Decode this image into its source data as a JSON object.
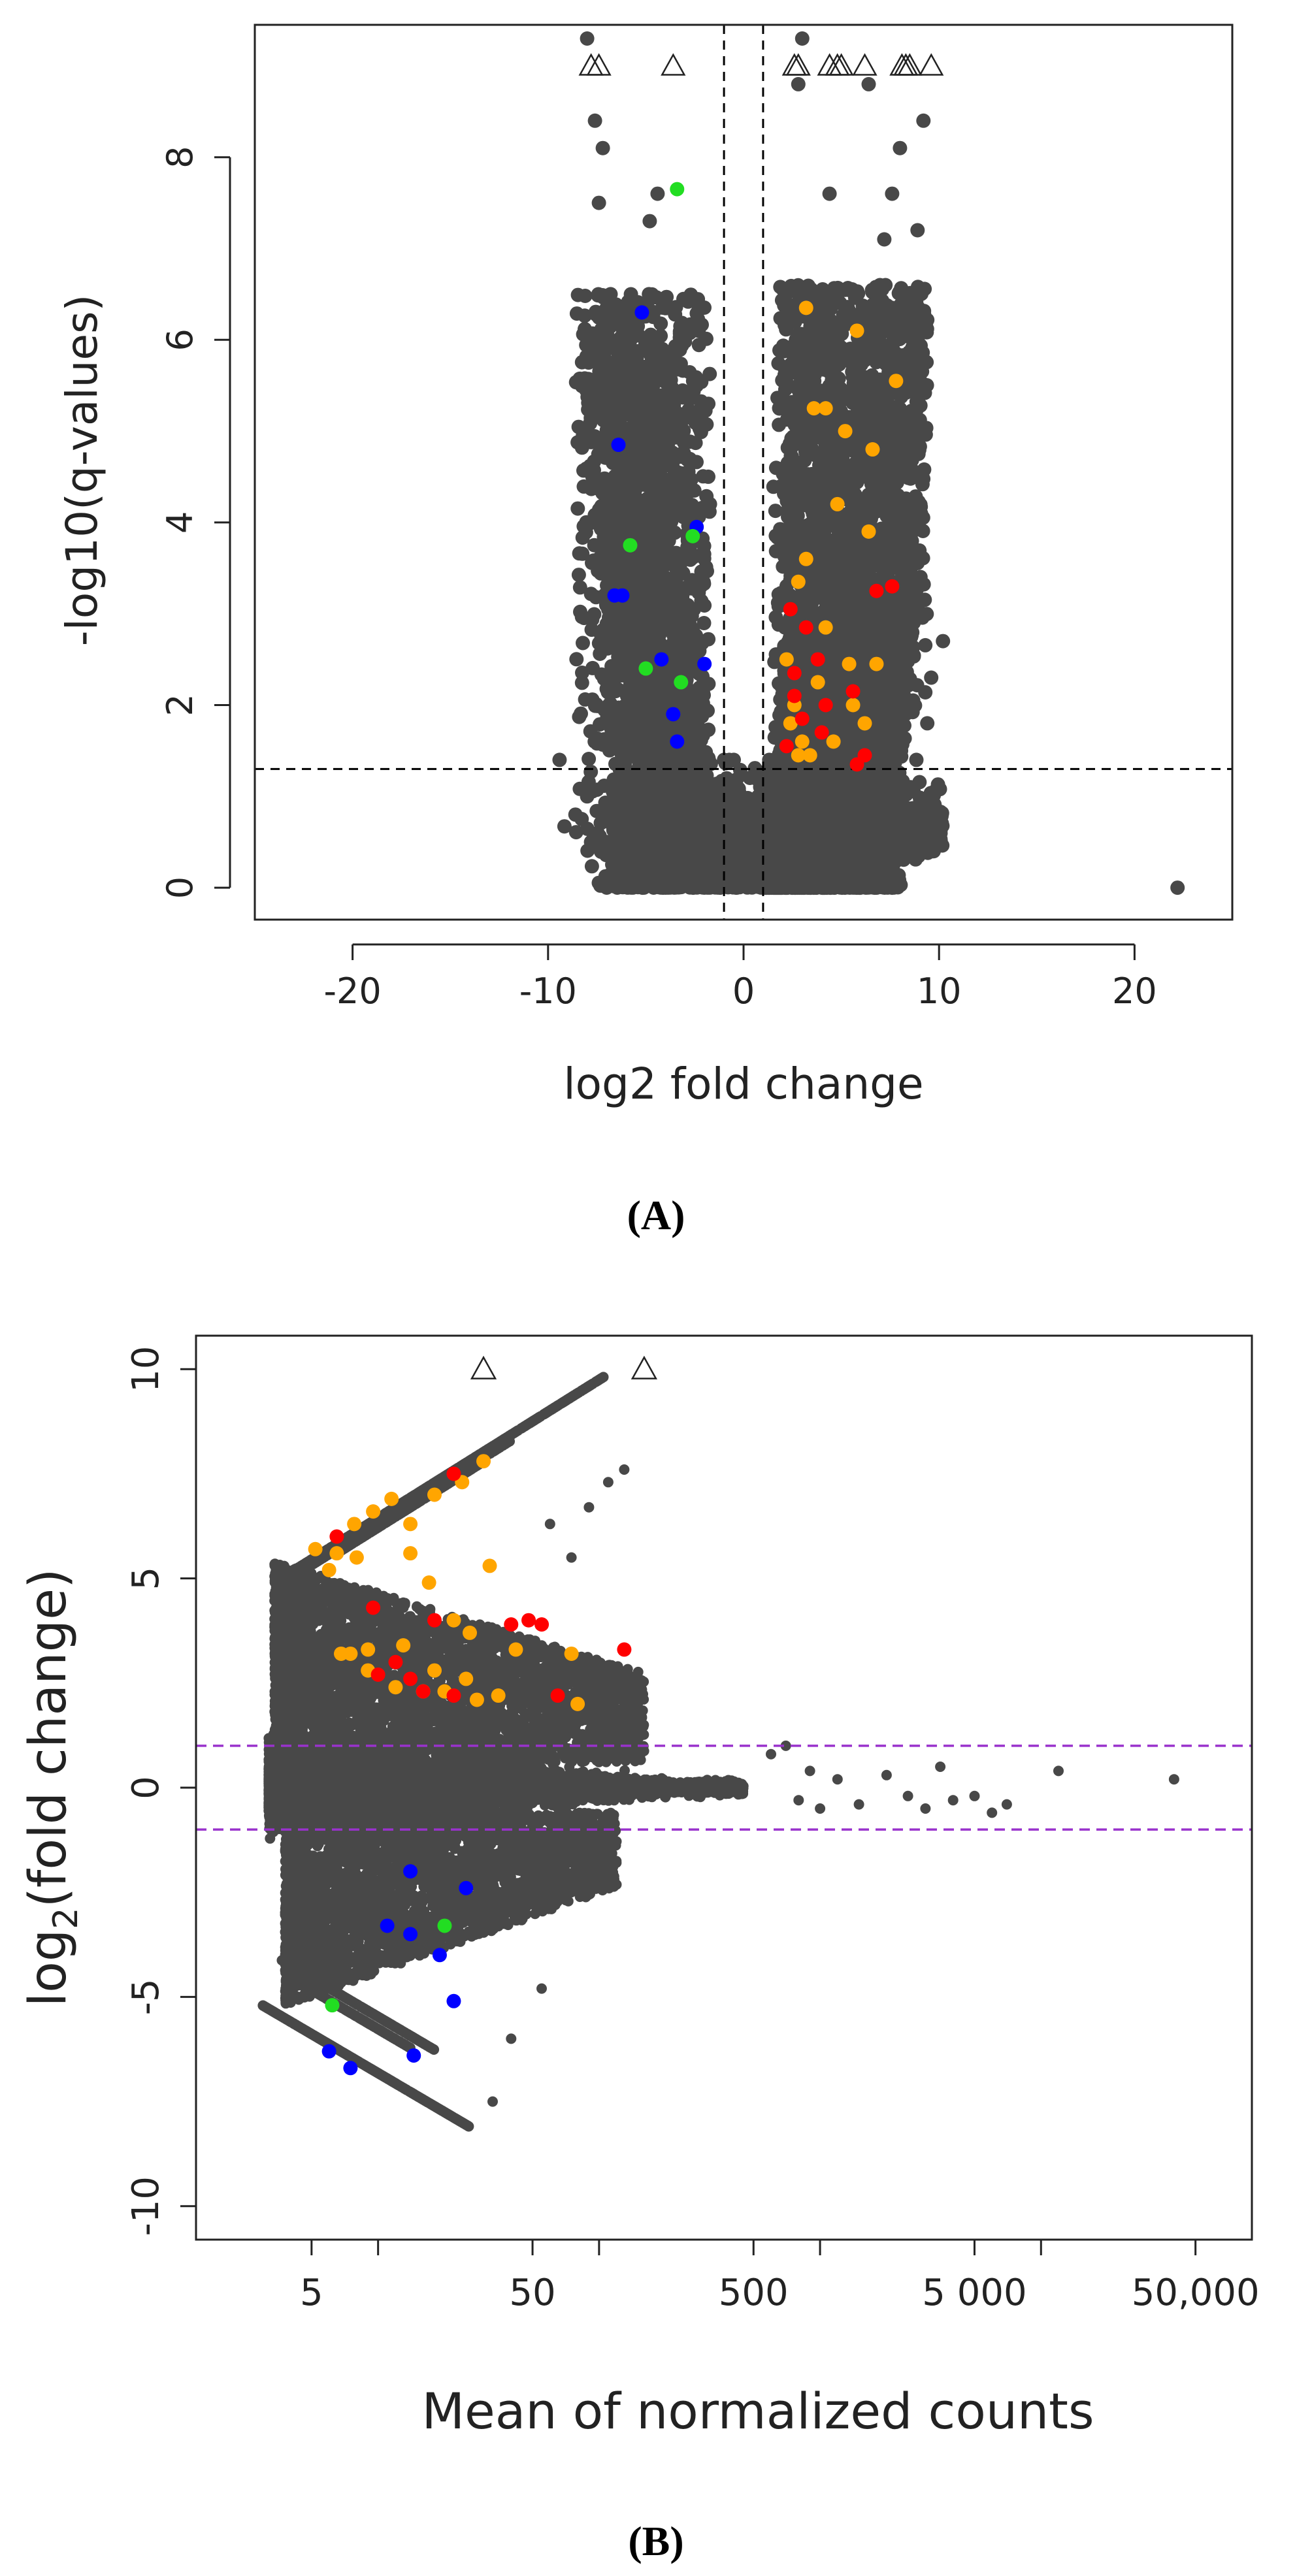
{
  "colors": {
    "background_points": "#484848",
    "upregulated_highlight": "#ffa500",
    "upregulated_top": "#ff0000",
    "downregulated_top": "#0000ff",
    "downregulated_other": "#22dd22",
    "reference_line_a": "#000000",
    "reference_line_b": "#9932cc"
  },
  "chart_data": [
    {
      "id": "A",
      "type": "scatter",
      "subtype": "volcano",
      "panel_label": "(A)",
      "title": "",
      "xlabel": "log2 fold change",
      "ylabel": "-log10(q-values)",
      "xlim": [
        -25,
        25
      ],
      "ylim": [
        -0.35,
        9.45
      ],
      "xticks": [
        -20,
        -10,
        0,
        10,
        20
      ],
      "xtick_labels": [
        "-20",
        "-10",
        "0",
        "10",
        "20"
      ],
      "yticks": [
        0,
        2,
        4,
        6,
        8
      ],
      "ytick_labels": [
        "0",
        "2",
        "4",
        "6",
        "8"
      ],
      "reference_lines": [
        {
          "orientation": "vertical",
          "value": -1,
          "style": "dashed",
          "color": "#000000"
        },
        {
          "orientation": "vertical",
          "value": 1,
          "style": "dashed",
          "color": "#000000"
        },
        {
          "orientation": "horizontal",
          "value": 1.3,
          "style": "dashed",
          "color": "#000000"
        }
      ],
      "clipped_markers": {
        "symbol": "open-triangle",
        "note": "points beyond plot limit",
        "y": 9.0,
        "x": [
          -7.8,
          -7.4,
          -3.6,
          2.6,
          2.8,
          4.4,
          4.8,
          5.0,
          6.2,
          8.1,
          8.3,
          8.5,
          9.6
        ]
      },
      "background_cloud_note": "many thousands of grey gene points (approximate reconstruction)",
      "highlighted_series": [
        {
          "name": "upregulated (orange)",
          "color": "#ffa500",
          "x": [
            3.2,
            3.6,
            4.2,
            5.2,
            5.8,
            6.6,
            7.8,
            4.8,
            6.4,
            3.2,
            2.8,
            2.2,
            4.2,
            5.4,
            6.8,
            3.8,
            2.6,
            2.4,
            3.0,
            6.2,
            4.6,
            2.8,
            3.4,
            5.6
          ],
          "y": [
            6.35,
            5.25,
            5.25,
            5.0,
            6.1,
            4.8,
            5.55,
            4.2,
            3.9,
            3.6,
            3.35,
            2.5,
            2.85,
            2.45,
            2.45,
            2.25,
            2.0,
            1.8,
            1.6,
            1.8,
            1.6,
            1.45,
            1.45,
            2.0
          ]
        },
        {
          "name": "upregulated (red)",
          "color": "#ff0000",
          "x": [
            2.4,
            2.6,
            3.2,
            3.8,
            4.2,
            5.6,
            6.8,
            7.6,
            2.2,
            4.0,
            5.8,
            3.0,
            2.6,
            6.2
          ],
          "y": [
            3.05,
            2.35,
            2.85,
            2.5,
            2.0,
            2.15,
            3.25,
            3.3,
            1.55,
            1.7,
            1.35,
            1.85,
            2.1,
            1.45
          ]
        },
        {
          "name": "downregulated (blue)",
          "color": "#0000ff",
          "x": [
            -5.2,
            -6.4,
            -6.6,
            -6.2,
            -4.2,
            -3.6,
            -3.4,
            -2.4,
            -2.0
          ],
          "y": [
            6.3,
            4.85,
            3.2,
            3.2,
            2.5,
            1.9,
            1.6,
            3.95,
            2.45
          ]
        },
        {
          "name": "downregulated (green)",
          "color": "#22dd22",
          "x": [
            -3.4,
            -5.8,
            -5.0,
            -3.2,
            -2.6
          ],
          "y": [
            7.65,
            3.75,
            2.4,
            2.25,
            3.85
          ]
        }
      ],
      "outlier_points": [
        {
          "x": 22.2,
          "y": 0.0
        }
      ]
    },
    {
      "id": "B",
      "type": "scatter",
      "subtype": "MA",
      "panel_label": "(B)",
      "title": "",
      "xlabel": "Mean of normalized counts",
      "ylabel": "log2(fold change)",
      "ylabel_base": "log",
      "ylabel_sub": "2",
      "ylabel_rest": "(fold change)",
      "x_scale": "log10",
      "xlim": [
        1.5,
        90000
      ],
      "ylim": [
        -10.8,
        10.8
      ],
      "xticks": [
        5,
        10,
        50,
        100,
        500,
        1000,
        5000,
        10000,
        50000
      ],
      "xtick_labels": [
        "5",
        "",
        "50",
        "",
        "500",
        "",
        "5 000",
        "",
        "50,000"
      ],
      "yticks": [
        -10,
        -5,
        0,
        5,
        10
      ],
      "ytick_labels": [
        "-10",
        "-5",
        "0",
        "5",
        "10"
      ],
      "reference_lines": [
        {
          "orientation": "horizontal",
          "value": 1,
          "style": "dashed",
          "color": "#9932cc"
        },
        {
          "orientation": "horizontal",
          "value": -1,
          "style": "dashed",
          "color": "#9932cc"
        }
      ],
      "clipped_markers": {
        "symbol": "open-triangle",
        "y": 10.0,
        "x": [
          30,
          160
        ]
      },
      "background_cloud_note": "many thousands of grey gene points (approximate reconstruction)",
      "highlighted_series": [
        {
          "name": "upregulated (orange)",
          "color": "#ffa500",
          "x": [
            5.2,
            6.5,
            7.8,
            9.5,
            11.5,
            14,
            18,
            24,
            30,
            6,
            8,
            6.8,
            7.5,
            9,
            13,
            17,
            22,
            32,
            12,
            16,
            20,
            26,
            42,
            75,
            80,
            14,
            18,
            28,
            35,
            9,
            25
          ],
          "y": [
            5.7,
            5.6,
            6.3,
            6.6,
            6.9,
            6.3,
            7.0,
            7.3,
            7.8,
            5.2,
            5.5,
            3.2,
            3.2,
            3.3,
            3.4,
            4.9,
            4.0,
            5.3,
            2.4,
            2.3,
            2.3,
            3.7,
            3.3,
            3.2,
            2.0,
            5.6,
            2.8,
            2.1,
            2.2,
            2.8,
            2.6
          ]
        },
        {
          "name": "upregulated (red)",
          "color": "#ff0000",
          "x": [
            6.5,
            9.5,
            12,
            18,
            22,
            40,
            48,
            55,
            65,
            130,
            10,
            16,
            14,
            22
          ],
          "y": [
            6.0,
            4.3,
            3.0,
            4.0,
            7.5,
            3.9,
            4.0,
            3.9,
            2.2,
            3.3,
            2.7,
            2.3,
            2.6,
            2.2
          ]
        },
        {
          "name": "downregulated (blue)",
          "color": "#0000ff",
          "x": [
            14,
            11,
            14,
            19,
            25,
            6.0,
            7.5,
            14.5,
            22
          ],
          "y": [
            -2.0,
            -3.3,
            -3.5,
            -4.0,
            -2.4,
            -6.3,
            -6.7,
            -6.4,
            -5.1
          ]
        },
        {
          "name": "downregulated (green)",
          "color": "#22dd22",
          "x": [
            6.2,
            20
          ],
          "y": [
            -5.2,
            -3.3
          ]
        }
      ],
      "sparse_high_count_points": {
        "x": [
          600,
          700,
          800,
          900,
          1000,
          1200,
          1500,
          2000,
          2500,
          3000,
          3500,
          4000,
          5000,
          7000,
          12000,
          40000,
          6000
        ],
        "y": [
          0.8,
          1.0,
          -0.3,
          0.4,
          -0.5,
          0.2,
          -0.4,
          0.3,
          -0.2,
          -0.5,
          0.5,
          -0.3,
          -0.2,
          -0.4,
          0.4,
          0.2,
          -0.6
        ]
      }
    }
  ]
}
